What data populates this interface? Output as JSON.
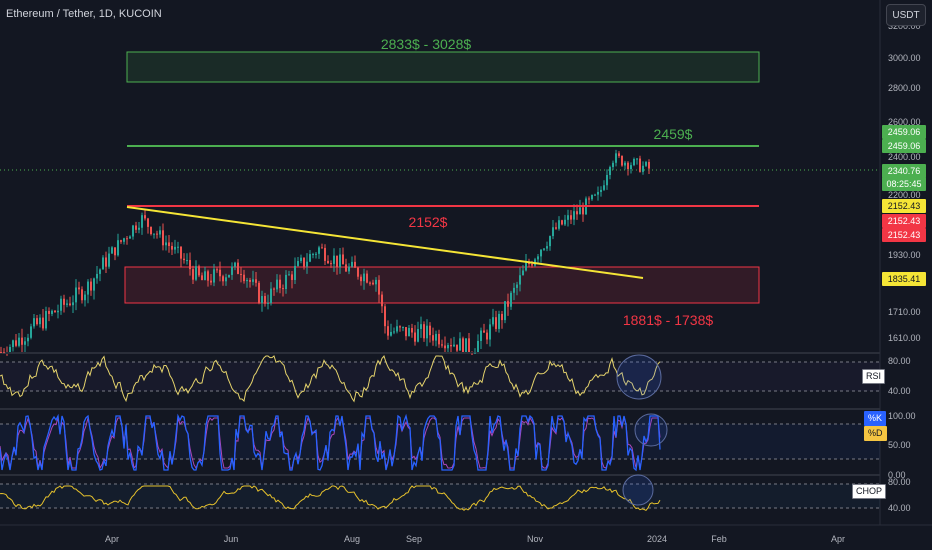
{
  "header": {
    "symbol_title": "Ethereum / Tether, 1D, KUCOIN",
    "currency_button": "USDT"
  },
  "colors": {
    "background": "#131722",
    "up_candle": "#26a69a",
    "down_candle": "#ef5350",
    "green_zone": "#4caf50",
    "red_line": "#f23645",
    "trendline": "#f5e536",
    "rsi": "#e5d36c",
    "stoch_k": "#2962ff",
    "stoch_d": "#ab47bc",
    "chop": "#e5c12c"
  },
  "annotations": {
    "target_zone_label": "2833$ - 3028$",
    "resistance_label": "2459$",
    "support_label": "2152$",
    "demand_zone_label": "1881$ - 1738$"
  },
  "price_tags": {
    "tag_2459a": "2459.06",
    "tag_2459b": "2459.06",
    "tag_last": "2340.76",
    "tag_timer": "08:25:45",
    "tag_2152a": "2152.43",
    "tag_2152b": "2152.43",
    "tag_2152c": "2152.43",
    "tag_1835": "1835.41"
  },
  "indicators": {
    "rsi_label": "RSI",
    "stoch_k_label": "%K",
    "stoch_d_label": "%D",
    "chop_label": "CHOP"
  },
  "chart_data": {
    "type": "candlestick",
    "symbol": "Ethereum / Tether",
    "timeframe": "1D",
    "exchange": "KUCOIN",
    "y_axis_ticks": [
      "3200.00",
      "3000.00",
      "2800.00",
      "2600.00",
      "2400.00",
      "2200.00",
      "1930.00",
      "1710.00",
      "1610.00"
    ],
    "x_axis_ticks": [
      "Apr",
      "Jun",
      "Aug",
      "Sep",
      "Nov",
      "2024",
      "Feb",
      "Apr"
    ],
    "levels": {
      "target_zone": [
        2833,
        3028
      ],
      "resistance": 2459.06,
      "support": 2152.43,
      "demand_zone": [
        1738,
        1881
      ]
    },
    "trendline": {
      "from": [
        "Apr",
        2152
      ],
      "to": [
        "Dec",
        1820
      ]
    },
    "price_path": [
      [
        "Mar",
        1560
      ],
      [
        "Apr",
        1800
      ],
      [
        "Apr",
        2100
      ],
      [
        "May",
        1830
      ],
      [
        "Jun",
        1880
      ],
      [
        "Jun",
        1750
      ],
      [
        "Jul",
        1960
      ],
      [
        "Jul",
        1880
      ],
      [
        "Aug",
        1840
      ],
      [
        "Aug",
        1640
      ],
      [
        "Sep",
        1630
      ],
      [
        "Oct",
        1570
      ],
      [
        "Oct",
        1690
      ],
      [
        "Nov",
        1880
      ],
      [
        "Nov",
        2050
      ],
      [
        "Dec",
        2200
      ],
      [
        "Dec",
        2400
      ],
      [
        "Dec",
        2340
      ]
    ],
    "rsi": {
      "ticks": [
        "80.00",
        "40.00"
      ]
    },
    "stoch": {
      "ticks": [
        "100.00",
        "50.00",
        "0.00"
      ]
    },
    "chop": {
      "ticks": [
        "80.00",
        "40.00"
      ]
    }
  }
}
